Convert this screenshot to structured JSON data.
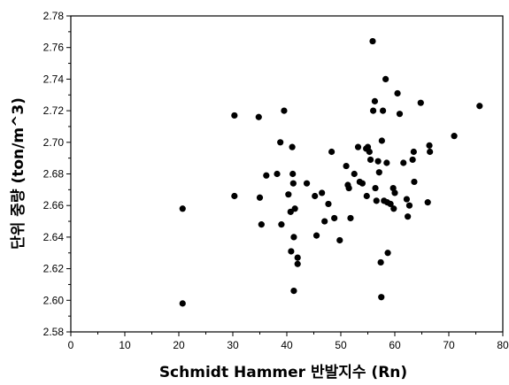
{
  "chart_data": {
    "type": "scatter",
    "xlabel": "Schmidt Hammer 반발지수 (Rn)",
    "ylabel": "단위 중량 (ton/m^3)",
    "xlim": [
      0,
      80
    ],
    "ylim": [
      2.58,
      2.78
    ],
    "x_ticks": [
      0,
      10,
      20,
      30,
      40,
      50,
      60,
      70,
      80
    ],
    "y_ticks": [
      "2.58",
      "2.60",
      "2.62",
      "2.64",
      "2.66",
      "2.68",
      "2.70",
      "2.72",
      "2.74",
      "2.76",
      "2.78"
    ],
    "grid": false,
    "marker_color": "#000000",
    "points": [
      [
        20.7,
        2.658
      ],
      [
        20.7,
        2.598
      ],
      [
        30.3,
        2.717
      ],
      [
        30.3,
        2.666
      ],
      [
        34.8,
        2.716
      ],
      [
        35.0,
        2.665
      ],
      [
        35.3,
        2.648
      ],
      [
        36.2,
        2.679
      ],
      [
        38.2,
        2.68
      ],
      [
        38.8,
        2.7
      ],
      [
        39.0,
        2.648
      ],
      [
        39.5,
        2.72
      ],
      [
        40.3,
        2.667
      ],
      [
        40.7,
        2.656
      ],
      [
        40.8,
        2.631
      ],
      [
        41.0,
        2.697
      ],
      [
        41.1,
        2.68
      ],
      [
        41.2,
        2.674
      ],
      [
        41.3,
        2.64
      ],
      [
        41.3,
        2.606
      ],
      [
        41.5,
        2.658
      ],
      [
        42.0,
        2.623
      ],
      [
        42.0,
        2.627
      ],
      [
        43.7,
        2.674
      ],
      [
        45.2,
        2.666
      ],
      [
        45.5,
        2.641
      ],
      [
        46.5,
        2.668
      ],
      [
        47.0,
        2.65
      ],
      [
        47.7,
        2.661
      ],
      [
        48.3,
        2.694
      ],
      [
        48.8,
        2.652
      ],
      [
        49.8,
        2.638
      ],
      [
        51.0,
        2.685
      ],
      [
        51.3,
        2.673
      ],
      [
        51.5,
        2.671
      ],
      [
        51.8,
        2.652
      ],
      [
        52.5,
        2.68
      ],
      [
        53.2,
        2.697
      ],
      [
        53.5,
        2.675
      ],
      [
        54.0,
        2.674
      ],
      [
        54.7,
        2.696
      ],
      [
        54.8,
        2.666
      ],
      [
        55.0,
        2.697
      ],
      [
        55.3,
        2.694
      ],
      [
        55.5,
        2.689
      ],
      [
        55.9,
        2.764
      ],
      [
        56.0,
        2.72
      ],
      [
        56.3,
        2.726
      ],
      [
        56.4,
        2.671
      ],
      [
        56.6,
        2.663
      ],
      [
        56.9,
        2.688
      ],
      [
        57.1,
        2.681
      ],
      [
        57.4,
        2.624
      ],
      [
        57.5,
        2.602
      ],
      [
        57.6,
        2.701
      ],
      [
        57.8,
        2.72
      ],
      [
        58.0,
        2.663
      ],
      [
        58.3,
        2.74
      ],
      [
        58.5,
        2.687
      ],
      [
        58.6,
        2.662
      ],
      [
        58.7,
        2.63
      ],
      [
        59.2,
        2.661
      ],
      [
        59.7,
        2.671
      ],
      [
        59.8,
        2.658
      ],
      [
        60.0,
        2.668
      ],
      [
        60.5,
        2.731
      ],
      [
        60.9,
        2.718
      ],
      [
        61.6,
        2.687
      ],
      [
        62.2,
        2.664
      ],
      [
        62.4,
        2.653
      ],
      [
        62.7,
        2.66
      ],
      [
        63.3,
        2.689
      ],
      [
        63.5,
        2.694
      ],
      [
        63.6,
        2.675
      ],
      [
        64.8,
        2.725
      ],
      [
        66.1,
        2.662
      ],
      [
        66.4,
        2.698
      ],
      [
        66.5,
        2.694
      ],
      [
        71.0,
        2.704
      ],
      [
        75.7,
        2.723
      ]
    ]
  }
}
